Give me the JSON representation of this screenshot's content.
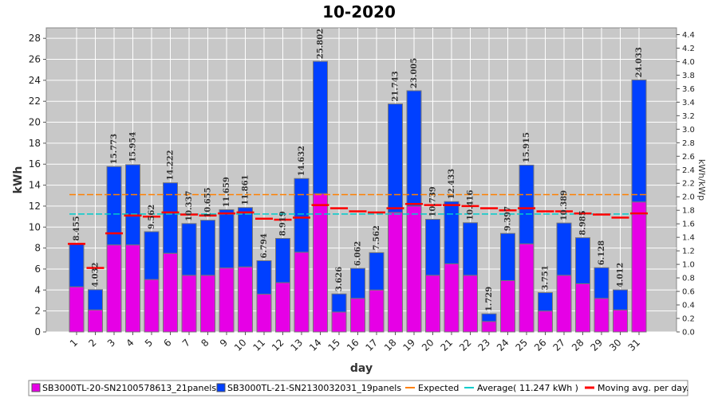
{
  "chart_data": {
    "type": "bar",
    "title": "10-2020",
    "xlabel": "day",
    "ylabel": "kWh",
    "y2label": "kWh/kWp",
    "ylim": [
      0,
      29
    ],
    "y2lim": [
      0,
      4.5
    ],
    "yticks": [
      0,
      2,
      4,
      6,
      8,
      10,
      12,
      14,
      16,
      18,
      20,
      22,
      24,
      26,
      28
    ],
    "y2ticks": [
      "0.0",
      "0.2",
      "0.4",
      "0.6",
      "0.8",
      "1.0",
      "1.2",
      "1.4",
      "1.6",
      "1.8",
      "2.0",
      "2.2",
      "2.4",
      "2.6",
      "2.8",
      "3.0",
      "3.2",
      "3.4",
      "3.6",
      "3.8",
      "4.0",
      "4.2",
      "4.4"
    ],
    "grid": true,
    "legend_position": "bottom",
    "categories": [
      "1",
      "2",
      "3",
      "4",
      "5",
      "6",
      "7",
      "8",
      "9",
      "10",
      "11",
      "12",
      "13",
      "14",
      "15",
      "16",
      "17",
      "18",
      "19",
      "20",
      "21",
      "22",
      "23",
      "24",
      "25",
      "26",
      "27",
      "28",
      "29",
      "30",
      "31"
    ],
    "series": [
      {
        "name": "SB3000TL-20-SN2100578613_21panels",
        "color": "#e600e6",
        "values": [
          4.3,
          2.1,
          8.3,
          8.3,
          5.0,
          7.5,
          5.4,
          5.4,
          6.1,
          6.2,
          3.6,
          4.7,
          7.6,
          13.2,
          1.9,
          3.2,
          4.0,
          11.4,
          12.0,
          5.4,
          6.5,
          5.4,
          1.0,
          4.9,
          8.4,
          2.0,
          5.4,
          4.6,
          3.2,
          2.1,
          12.4
        ]
      },
      {
        "name": "SB3000TL-21-SN2130032031_19panels",
        "color": "#0040ff",
        "values": [
          4.155,
          1.931,
          7.473,
          7.654,
          4.562,
          6.722,
          4.937,
          5.255,
          5.559,
          5.661,
          3.194,
          4.219,
          7.032,
          12.602,
          1.726,
          2.862,
          3.562,
          10.343,
          11.005,
          5.339,
          5.933,
          5.016,
          0.729,
          4.497,
          7.515,
          1.751,
          4.989,
          4.385,
          2.928,
          1.912,
          11.633
        ]
      }
    ],
    "totals": [
      "8.455",
      "4.032",
      "15.773",
      "15.954",
      "9.562",
      "14.222",
      "10.337",
      "10.655",
      "11.659",
      "11.861",
      "6.794",
      "8.919",
      "14.632",
      "25.802",
      "3.626",
      "6.062",
      "7.562",
      "21.743",
      "23.005",
      "10.739",
      "12.433",
      "10.416",
      "1.729",
      "9.397",
      "15.915",
      "3.751",
      "10.389",
      "8.985",
      "6.128",
      "4.012",
      "24.033"
    ],
    "expected": {
      "name": "Expected",
      "color": "#ff8000",
      "value": 13.1
    },
    "average": {
      "name": "Average( 11.247 kWh )",
      "color": "#00cccc",
      "value": 11.247
    },
    "moving_avg": {
      "name": "Moving avg. per day.",
      "color": "#ff0000",
      "values": [
        8.4,
        6.1,
        9.4,
        11.1,
        11.0,
        11.4,
        11.2,
        11.1,
        11.3,
        11.4,
        10.8,
        10.7,
        10.9,
        12.1,
        11.8,
        11.5,
        11.4,
        11.8,
        12.2,
        12.1,
        12.1,
        12.0,
        11.8,
        11.6,
        11.8,
        11.5,
        11.5,
        11.3,
        11.2,
        10.9,
        11.3
      ]
    }
  }
}
